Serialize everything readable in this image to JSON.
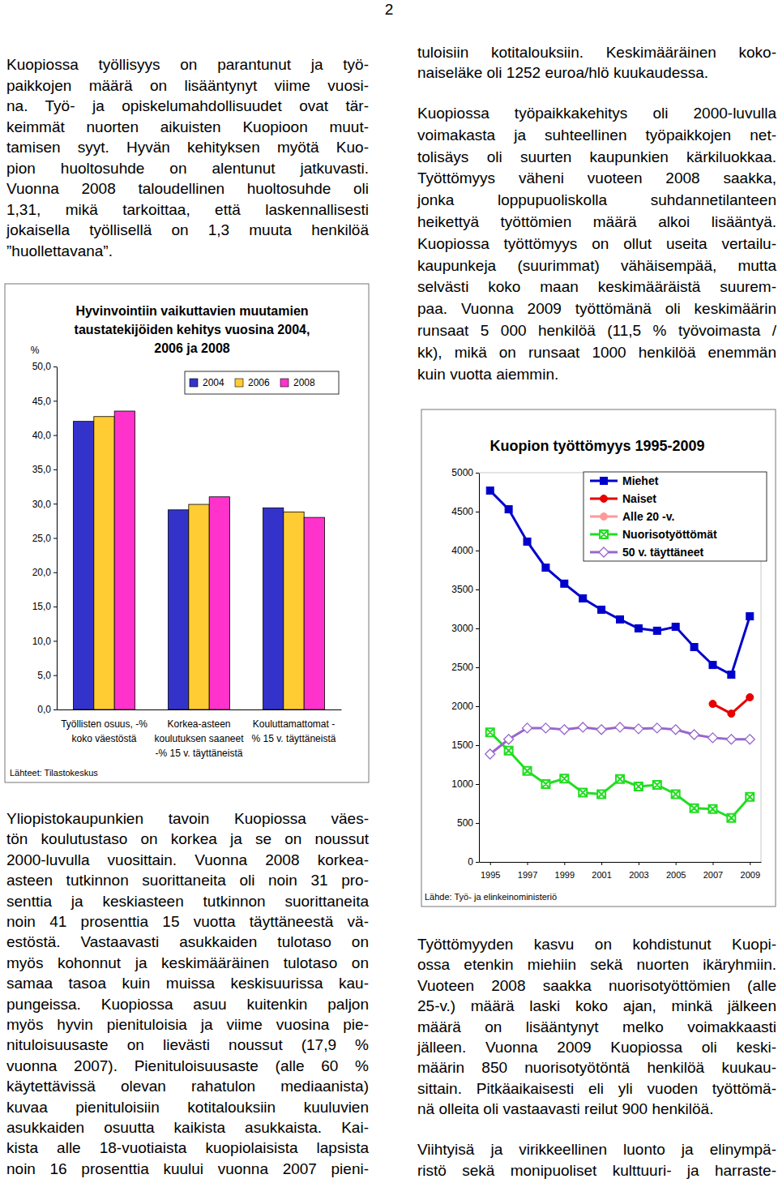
{
  "page_number": "2",
  "left_column": [
    [
      "Kuopiossa työllisyys on parantunut ja työ-",
      "paikkojen määrä on lisääntynyt viime vuosi-",
      "na. Työ- ja opiskelumahdollisuudet ovat tär-",
      "keimmät nuorten aikuisten Kuopioon muut-",
      "tamisen syyt. Hyvän kehityksen myötä Kuo-",
      "pion huoltosuhde on alentunut jatkuvasti.",
      "Vuonna 2008 taloudellinen huoltosuhde oli",
      "1,31, mikä tarkoittaa, että laskennallisesti",
      "jokaisella työllisellä on 1,3 muuta henkilöä",
      "”huollettavana”."
    ],
    [
      "Yliopistokaupunkien tavoin Kuopiossa väes-",
      "tön koulutustaso on korkea ja se on noussut",
      "2000-luvulla vuosittain. Vuonna 2008 korkea-",
      "asteen tutkinnon suorittaneita oli noin 31 pro-",
      "senttia ja keskiasteen tutkinnon suorittaneita",
      "noin 41 prosenttia 15 vuotta täyttäneestä vä-",
      "estöstä. Vastaavasti asukkaiden tulotaso on",
      "myös kohonnut ja keskimääräinen tulotaso on",
      "samaa tasoa kuin muissa keskisuurissa kau-",
      "pungeissa. Kuopiossa asuu kuitenkin paljon",
      "myös hyvin pienituloisia ja viime vuosina pie-",
      "nituloisuusaste on lievästi noussut (17,9 %",
      "vuonna 2007). Pienituloisuusaste (alle 60 %",
      "käytettävissä olevan rahatulon mediaanista)",
      "kuvaa pienituloisiin kotitalouksiin kuuluvien",
      "asukkaiden osuutta kaikista asukkaista. Kai-",
      "kista alle 18-vuotiaista kuopiolaisista lapsista",
      "noin 16 prosenttia kuului vuonna 2007 pieni-"
    ]
  ],
  "right_column": [
    [
      "tuloisiin kotitalouksiin. Keskimääräinen koko-",
      "naiseläke oli 1252 euroa/hlö kuukaudessa."
    ],
    [
      "Kuopiossa työpaikkakehitys oli 2000-luvulla",
      "voimakasta ja suhteellinen työpaikkojen net-",
      "tolisäys oli suurten kaupunkien kärkiluokkaa.",
      "Työttömyys väheni vuoteen 2008 saakka,",
      "jonka loppupuoliskolla suhdannetilanteen",
      "heikettyä työttömien määrä alkoi lisääntyä.",
      "Kuopiossa työttömyys on ollut useita vertailu-",
      "kaupunkeja (suurimmat) vähäisempää, mutta",
      "selvästi koko maan keskimääräistä suurem-",
      "paa. Vuonna 2009 työttömänä oli keskimäärin",
      "runsaat 5 000 henkilöä (11,5 % työvoimasta /",
      "kk), mikä on runsaat 1000 henkilöä enemmän",
      "kuin vuotta aiemmin."
    ],
    [
      "Työttömyyden kasvu on kohdistunut Kuopi-",
      "ossa etenkin miehiin sekä nuorten ikäryhmiin.",
      "Vuoteen 2008 saakka nuorisotyöttömien (alle",
      "25-v.) määrä laski koko ajan, minkä jälkeen",
      "määrä on lisääntynyt melko voimakkaasti",
      "jälleen. Vuonna 2009 Kuopiossa oli keski-",
      "määrin 850 nuorisotyötöntä henkilöä kuukau-",
      "sittain. Pitkäaikaisesti eli yli vuoden työttömä-",
      "nä olleita oli vastaavasti reilut 900 henkilöä."
    ],
    [
      "Viihtyisä ja virikkeellinen luonto ja elinympä-",
      "ristö sekä monipuoliset kulttuuri- ja harraste-"
    ]
  ],
  "chart_data": [
    {
      "type": "bar",
      "title": [
        "Hyvinvointiin vaikuttavien muutamien",
        "taustatekijöiden kehitys vuosina 2004,",
        "2006 ja 2008"
      ],
      "ylabel": "%",
      "categories": [
        "Työllisten osuus, -%\nkoko väestöstä",
        "Korkea-asteen\nkoulutuksen saaneet\n-% 15 v. täyttäneistä",
        "Kouluttamattomat -\n% 15 v. täyttäneistä"
      ],
      "series": [
        {
          "name": "2004",
          "color": "#3333cc",
          "values": [
            42.0,
            29.1,
            29.4
          ]
        },
        {
          "name": "2006",
          "color": "#ffcc33",
          "values": [
            42.7,
            29.9,
            28.8
          ]
        },
        {
          "name": "2008",
          "color": "#ff33cc",
          "values": [
            43.5,
            31.0,
            28.0
          ]
        }
      ],
      "ylim": [
        0,
        50
      ],
      "yticks": [
        {
          "value": 0,
          "label": "0,0"
        },
        {
          "value": 5,
          "label": "5,0"
        },
        {
          "value": 10,
          "label": "10,0"
        },
        {
          "value": 15,
          "label": "15,0"
        },
        {
          "value": 20,
          "label": "20,0"
        },
        {
          "value": 25,
          "label": "25,0"
        },
        {
          "value": 30,
          "label": "30,0"
        },
        {
          "value": 35,
          "label": "35,0"
        },
        {
          "value": 40,
          "label": "40,0"
        },
        {
          "value": 45,
          "label": "45,0"
        },
        {
          "value": 50,
          "label": "50,0"
        }
      ],
      "grid": false,
      "legend": "top-right",
      "annotations": [
        "Lähteet: Tilastokeskus"
      ]
    },
    {
      "type": "line",
      "title": "Kuopion työttömyys 1995-2009",
      "x": [
        1995,
        1996,
        1997,
        1998,
        1999,
        2000,
        2001,
        2002,
        2003,
        2004,
        2005,
        2006,
        2007,
        2008,
        2009
      ],
      "series": [
        {
          "name": "Miehet",
          "color": "#0000cc",
          "marker": "square",
          "values": [
            4770,
            4530,
            4115,
            3780,
            3575,
            3385,
            3240,
            3115,
            3000,
            2970,
            3020,
            2760,
            2530,
            2405,
            3155
          ]
        },
        {
          "name": "Naiset",
          "color": "#e60000",
          "marker": "circle",
          "values": [
            null,
            null,
            null,
            null,
            null,
            null,
            null,
            null,
            null,
            null,
            null,
            null,
            2030,
            1905,
            2115
          ]
        },
        {
          "name": "Alle 20 -v.",
          "color": "#ff9999",
          "marker": "circle",
          "values": [
            null,
            null,
            null,
            null,
            null,
            null,
            null,
            null,
            null,
            null,
            null,
            null,
            null,
            null,
            null
          ]
        },
        {
          "name": "Nuorisotyöttömät",
          "color": "#22dd22",
          "marker": "x-square",
          "values": [
            1665,
            1430,
            1170,
            1000,
            1070,
            890,
            870,
            1065,
            970,
            990,
            870,
            690,
            680,
            565,
            835
          ]
        },
        {
          "name": "50 v. täyttäneet",
          "color": "#9966cc",
          "marker": "diamond",
          "values": [
            1385,
            1575,
            1720,
            1720,
            1700,
            1730,
            1700,
            1730,
            1710,
            1720,
            1700,
            1635,
            1595,
            1575,
            1575
          ]
        }
      ],
      "xlim": [
        1994.4,
        2009.6
      ],
      "xticks": [
        1995,
        1997,
        1999,
        2001,
        2003,
        2005,
        2007,
        2009
      ],
      "ylim": [
        0,
        5000
      ],
      "yticks": [
        0,
        500,
        1000,
        1500,
        2000,
        2500,
        3000,
        3500,
        4000,
        4500,
        5000
      ],
      "grid": false,
      "legend": "top-right",
      "annotations": [
        "Lähde: Työ- ja elinkeinoministeriö"
      ]
    }
  ]
}
